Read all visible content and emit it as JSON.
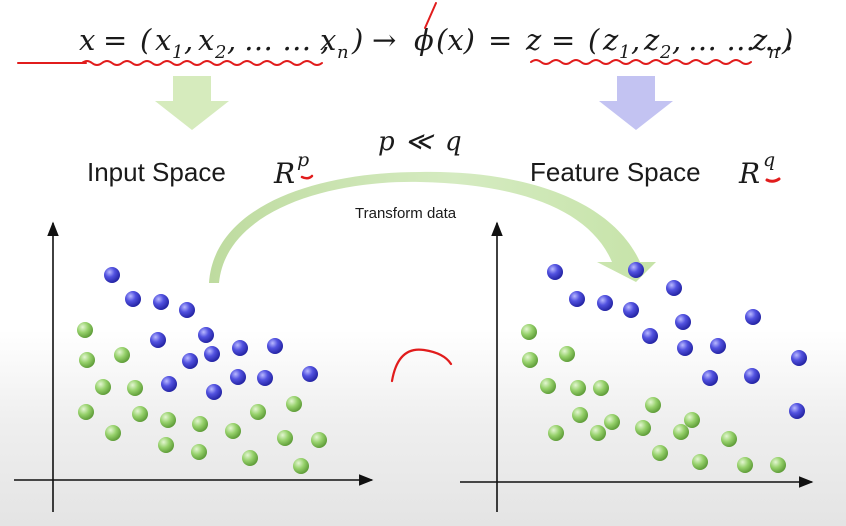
{
  "equation": {
    "x": "x",
    "eq1": "=",
    "lparen1": "(",
    "x1_base": "x",
    "x1_sub": "1",
    "comma1": ",",
    "x2_base": "x",
    "x2_sub": "2",
    "comma2": ",",
    "dots1": "… … ,",
    "xn_base": "x",
    "xn_sub": "n",
    "rparen1": ")",
    "arrow": "→",
    "phi": "ϕ",
    "phi_arg": "(x)",
    "eq2": "=",
    "z": "z",
    "eq3": "=",
    "lparen2": "(",
    "z1_base": "z",
    "z1_sub": "1",
    "comma3": ",",
    "z2_base": "z",
    "z2_sub": "2",
    "comma4": ",",
    "dots2": "… … …",
    "zn_base": "z",
    "zn_sub": "n",
    "rparen2": ")"
  },
  "input_label": "Input Space",
  "input_math_base": "R",
  "input_math_sup": "p",
  "feature_label": "Feature Space",
  "feature_math_base": "R",
  "feature_math_sup": "q",
  "relation_lhs": "p",
  "relation_op": "≪",
  "relation_rhs": "q",
  "transform_label": "Transform data",
  "colors": {
    "green_arrow": "#d6ebbd",
    "lavender_arrow": "#c3c3f2",
    "blue_dot": "#4646d6",
    "green_dot": "#8ecb62",
    "annotation_red": "#e11c1c",
    "axis": "#111111"
  },
  "left_points": {
    "blue": [
      [
        112,
        275
      ],
      [
        133,
        299
      ],
      [
        161,
        302
      ],
      [
        187,
        310
      ],
      [
        206,
        335
      ],
      [
        158,
        340
      ],
      [
        240,
        348
      ],
      [
        275,
        346
      ],
      [
        212,
        354
      ],
      [
        190,
        361
      ],
      [
        169,
        384
      ],
      [
        214,
        392
      ],
      [
        238,
        377
      ],
      [
        265,
        378
      ],
      [
        310,
        374
      ]
    ],
    "green": [
      [
        85,
        330
      ],
      [
        87,
        360
      ],
      [
        122,
        355
      ],
      [
        103,
        387
      ],
      [
        135,
        388
      ],
      [
        86,
        412
      ],
      [
        113,
        433
      ],
      [
        140,
        414
      ],
      [
        168,
        420
      ],
      [
        200,
        424
      ],
      [
        258,
        412
      ],
      [
        294,
        404
      ],
      [
        233,
        431
      ],
      [
        285,
        438
      ],
      [
        319,
        440
      ],
      [
        166,
        445
      ],
      [
        199,
        452
      ],
      [
        250,
        458
      ],
      [
        301,
        466
      ]
    ]
  },
  "right_points": {
    "blue": [
      [
        555,
        272
      ],
      [
        636,
        270
      ],
      [
        674,
        288
      ],
      [
        577,
        299
      ],
      [
        605,
        303
      ],
      [
        631,
        310
      ],
      [
        753,
        317
      ],
      [
        683,
        322
      ],
      [
        650,
        336
      ],
      [
        685,
        348
      ],
      [
        718,
        346
      ],
      [
        799,
        358
      ],
      [
        710,
        378
      ],
      [
        752,
        376
      ],
      [
        797,
        411
      ]
    ],
    "green": [
      [
        529,
        332
      ],
      [
        530,
        360
      ],
      [
        567,
        354
      ],
      [
        548,
        386
      ],
      [
        578,
        388
      ],
      [
        601,
        388
      ],
      [
        580,
        415
      ],
      [
        653,
        405
      ],
      [
        612,
        422
      ],
      [
        643,
        428
      ],
      [
        681,
        432
      ],
      [
        556,
        433
      ],
      [
        598,
        433
      ],
      [
        692,
        420
      ],
      [
        729,
        439
      ],
      [
        660,
        453
      ],
      [
        700,
        462
      ],
      [
        745,
        465
      ],
      [
        778,
        465
      ]
    ]
  }
}
